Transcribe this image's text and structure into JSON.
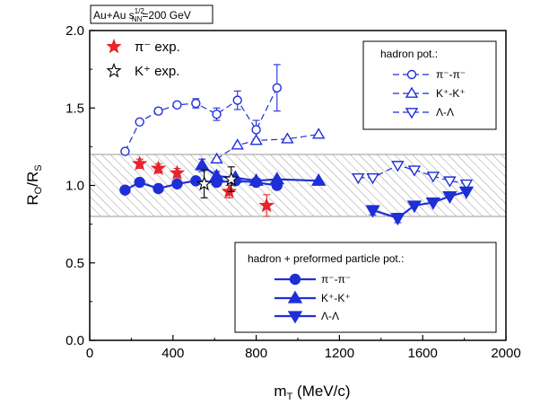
{
  "chart_data": {
    "type": "scatter",
    "title": "",
    "annotation_box": {
      "main": "Au+Au s",
      "sup": "1/2",
      "sub": "NN",
      "tail": "=200 GeV"
    },
    "xlabel": {
      "main": "m",
      "sub": "T",
      "tail": " (MeV/c)"
    },
    "ylabel": {
      "main": "R",
      "sub1": "O",
      "mid": "/R",
      "sub2": "S"
    },
    "xlim": [
      0,
      2000
    ],
    "ylim": [
      0,
      2.0
    ],
    "xticks": [
      "0",
      "400",
      "800",
      "1200",
      "1600",
      "2000"
    ],
    "yticks": [
      "0.0",
      "0.5",
      "1.0",
      "1.5",
      "2.0"
    ],
    "band": [
      0.8,
      1.2
    ],
    "experiment_legend": [
      "π⁻ exp.",
      "K⁺ exp."
    ],
    "legend_hadron_title": "hadron pot.:",
    "legend_hadron": [
      "π⁻-π⁻",
      "K⁺-K⁺",
      "Λ-Λ"
    ],
    "legend_preformed_title": "hadron + preformed particle pot.:",
    "legend_preformed": [
      "π⁻-π⁻",
      "K⁺-K⁺",
      "Λ-Λ"
    ],
    "colors": {
      "model": "#1f2fd6",
      "pion_exp": "#e8242a",
      "kaon_exp": "#000000",
      "band": "#9a9a9a"
    },
    "series": [
      {
        "group": "hadron",
        "particle": "pion",
        "marker": "circle-open",
        "x": [
          170,
          240,
          330,
          420,
          510,
          610,
          710,
          800,
          900
        ],
        "y": [
          1.22,
          1.41,
          1.48,
          1.52,
          1.53,
          1.46,
          1.55,
          1.36,
          1.63
        ],
        "err": [
          0,
          0,
          0.02,
          0,
          0.03,
          0.04,
          0.06,
          0.06,
          0.15
        ]
      },
      {
        "group": "hadron",
        "particle": "kaon",
        "marker": "triangle-up-open",
        "x": [
          610,
          710,
          800,
          950,
          1100
        ],
        "y": [
          1.17,
          1.26,
          1.29,
          1.3,
          1.33
        ],
        "err": [
          0,
          0,
          0,
          0,
          0
        ]
      },
      {
        "group": "hadron",
        "particle": "lambda",
        "marker": "triangle-down-open",
        "x": [
          1290,
          1360,
          1480,
          1560,
          1650,
          1730,
          1810
        ],
        "y": [
          1.05,
          1.05,
          1.13,
          1.1,
          1.06,
          1.03,
          1.01
        ],
        "err": [
          0,
          0,
          0,
          0,
          0,
          0,
          0
        ]
      },
      {
        "group": "preformed",
        "particle": "pion",
        "marker": "circle-filled",
        "x": [
          170,
          240,
          330,
          420,
          510,
          610,
          700,
          800,
          900
        ],
        "y": [
          0.97,
          1.02,
          0.98,
          1.01,
          1.03,
          1.02,
          1.03,
          1.02,
          1.0
        ],
        "err": [
          0,
          0,
          0,
          0,
          0,
          0,
          0,
          0,
          0
        ]
      },
      {
        "group": "preformed",
        "particle": "kaon",
        "marker": "triangle-up-filled",
        "x": [
          540,
          610,
          700,
          800,
          900,
          1100
        ],
        "y": [
          1.13,
          1.06,
          1.05,
          1.03,
          1.04,
          1.03
        ],
        "err": [
          0.04,
          0.03,
          0,
          0,
          0,
          0
        ]
      },
      {
        "group": "preformed",
        "particle": "lambda",
        "marker": "triangle-down-filled",
        "x": [
          1360,
          1480,
          1560,
          1650,
          1730,
          1810
        ],
        "y": [
          0.84,
          0.79,
          0.87,
          0.89,
          0.93,
          0.96
        ],
        "err": [
          0.03,
          0.03,
          0,
          0,
          0,
          0
        ]
      },
      {
        "group": "experiment",
        "particle": "pion",
        "marker": "star-filled",
        "x": [
          240,
          330,
          420,
          670,
          850
        ],
        "y": [
          1.14,
          1.11,
          1.08,
          0.96,
          0.87
        ],
        "err": [
          0.03,
          0.03,
          0.03,
          0.04,
          0.07
        ]
      },
      {
        "group": "experiment",
        "particle": "kaon",
        "marker": "star-open",
        "x": [
          550,
          680
        ],
        "y": [
          1.01,
          1.04
        ],
        "err": [
          0.09,
          0.08
        ]
      }
    ]
  }
}
